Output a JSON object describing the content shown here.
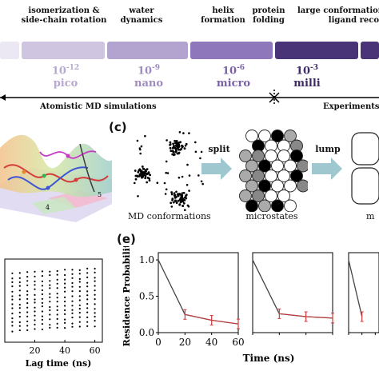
{
  "timescale": {
    "events": [
      {
        "line1": "isomerization &",
        "line2": "side-chain rotation"
      },
      {
        "line1": "water",
        "line2": "dynamics"
      },
      {
        "line1": "helix",
        "line2": "formation"
      },
      {
        "line1": "protein",
        "line2": "folding"
      },
      {
        "line1": "large conformational",
        "line2": "ligand reco"
      }
    ],
    "exponents": [
      {
        "base": "10",
        "exp": "-12",
        "prefix": "pico",
        "color": "#b7a9cf"
      },
      {
        "base": "10",
        "exp": "-9",
        "prefix": "nano",
        "color": "#9e8cc1"
      },
      {
        "base": "10",
        "exp": "-6",
        "prefix": "micro",
        "color": "#7a62a9"
      },
      {
        "base": "10",
        "exp": "-3",
        "prefix": "milli",
        "color": "#3f2a66"
      }
    ],
    "bar_colors": [
      "#ece8f3",
      "#cfc5e0",
      "#b2a3cf",
      "#8e78bb",
      "#5a3f8c",
      "#4a3478"
    ],
    "md_label": "Atomistic MD simulations",
    "exp_label": "Experiments"
  },
  "panel_c": {
    "tag": "(c)",
    "split_label": "split",
    "lump_label": "lump",
    "md_caption": "MD conformations",
    "micro_caption": "microstates",
    "macro_caption": "m"
  },
  "panel_landscape": {
    "states": [
      "4",
      "5"
    ]
  },
  "panel_d": {
    "xlabel": "Lag time (ns)",
    "xticks": [
      "20",
      "40",
      "60"
    ]
  },
  "panel_e": {
    "tag": "(e)",
    "ylabel": "Residence Probability",
    "xlabel": "Time (ns)",
    "yticks": [
      "0.0",
      "0.5",
      "1.0"
    ],
    "xticks": [
      "0",
      "20",
      "40",
      "60"
    ]
  },
  "chart_data": [
    {
      "type": "line",
      "title": "",
      "xlabel": "Time (ns)",
      "ylabel": "Residence Probability",
      "ylim": [
        0,
        1.1
      ],
      "xlim": [
        0,
        60
      ],
      "series": [
        {
          "x": [
            0,
            20,
            40,
            60
          ],
          "values": [
            1.0,
            0.25,
            0.17,
            0.12
          ]
        },
        {
          "x": [
            0,
            20,
            40,
            60
          ],
          "values": [
            1.0,
            0.26,
            0.22,
            0.2
          ]
        },
        {
          "x": [
            0,
            20
          ],
          "values": [
            1.0,
            0.22
          ]
        }
      ]
    },
    {
      "type": "scatter",
      "xlabel": "Lag time (ns)",
      "ylabel": "",
      "xlim": [
        0,
        65
      ],
      "x_ticks": [
        20,
        40,
        60
      ]
    }
  ]
}
